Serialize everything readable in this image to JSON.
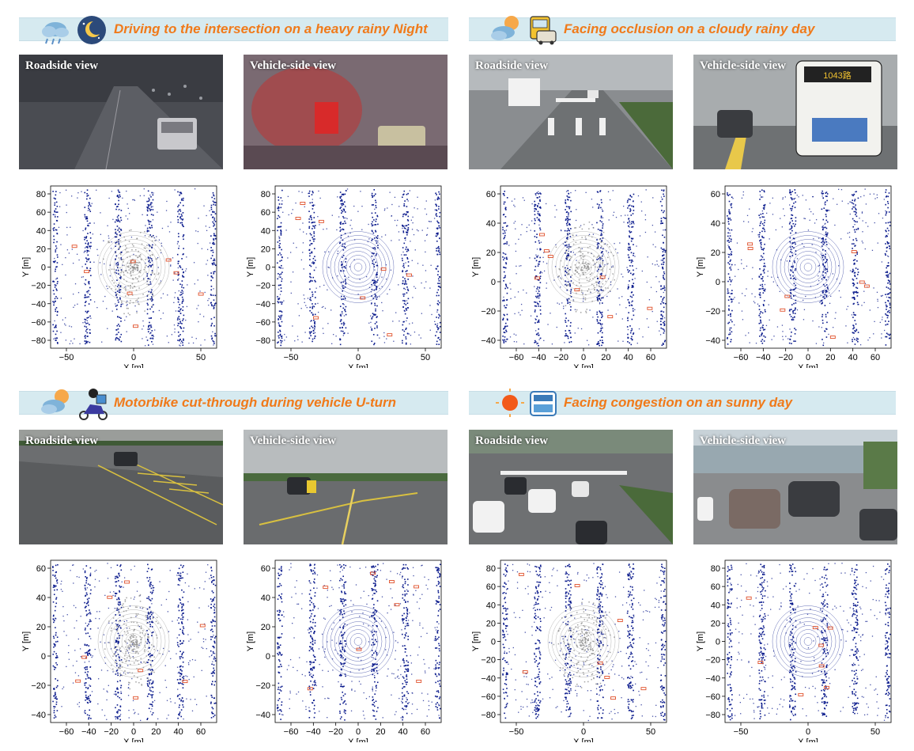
{
  "scenarios": [
    {
      "title": "Driving to the intersection on a heavy rainy Night",
      "icons": [
        "rain-cloud-icon",
        "night-moon-icon"
      ],
      "roadside_caption": "Roadside view",
      "vehicle_caption": "Vehicle-side view",
      "roadside_plot": {
        "x_ticks": [
          "−50",
          "0",
          "50"
        ],
        "y_ticks": [
          "80",
          "60",
          "40",
          "20",
          "0",
          "−20",
          "−40",
          "−60",
          "−80"
        ],
        "xlabel": "X [m]",
        "ylabel": "Y [m]"
      },
      "vehicle_plot": {
        "x_ticks": [
          "−50",
          "0",
          "50"
        ],
        "y_ticks": [
          "80",
          "60",
          "40",
          "20",
          "0",
          "−20",
          "−40",
          "−60",
          "−80"
        ],
        "xlabel": "X [m]",
        "ylabel": "Y [m]"
      }
    },
    {
      "title": "Facing occlusion on a cloudy rainy day",
      "icons": [
        "cloudy-sun-icon",
        "bus-car-icon"
      ],
      "roadside_caption": "Roadside view",
      "vehicle_caption": "Vehicle-side view",
      "bus_sign": "1043路",
      "roadside_plot": {
        "x_ticks": [
          "−60",
          "−40",
          "−20",
          "0",
          "20",
          "40",
          "60"
        ],
        "y_ticks": [
          "60",
          "40",
          "20",
          "0",
          "−20",
          "−40"
        ],
        "xlabel": "X [m]",
        "ylabel": "Y [m]"
      },
      "vehicle_plot": {
        "x_ticks": [
          "−60",
          "−40",
          "−20",
          "0",
          "20",
          "40",
          "60"
        ],
        "y_ticks": [
          "60",
          "40",
          "20",
          "0",
          "−20",
          "−40"
        ],
        "xlabel": "X [m]",
        "ylabel": "Y [m]"
      }
    },
    {
      "title": "Motorbike cut-through during vehicle U-turn",
      "icons": [
        "cloudy-sun-icon",
        "motorbike-rider-icon"
      ],
      "roadside_caption": "Roadside view",
      "vehicle_caption": "Vehicle-side view",
      "roadside_plot": {
        "x_ticks": [
          "−60",
          "−40",
          "−20",
          "0",
          "20",
          "40",
          "60"
        ],
        "y_ticks": [
          "60",
          "40",
          "20",
          "0",
          "−20",
          "−40"
        ],
        "xlabel": "X [m]",
        "ylabel": "Y [m]"
      },
      "vehicle_plot": {
        "x_ticks": [
          "−60",
          "−40",
          "−20",
          "0",
          "20",
          "40",
          "60"
        ],
        "y_ticks": [
          "60",
          "40",
          "20",
          "0",
          "−20",
          "−40"
        ],
        "xlabel": "X [m]",
        "ylabel": "Y [m]"
      }
    },
    {
      "title": "Facing congestion on an sunny day",
      "icons": [
        "sun-icon",
        "traffic-jam-icon"
      ],
      "roadside_caption": "Roadside view",
      "vehicle_caption": "Vehicle-side view",
      "roadside_plot": {
        "x_ticks": [
          "−50",
          "0",
          "50"
        ],
        "y_ticks": [
          "80",
          "60",
          "40",
          "20",
          "0",
          "−20",
          "−40",
          "−60",
          "−80"
        ],
        "xlabel": "X [m]",
        "ylabel": "Y [m]"
      },
      "vehicle_plot": {
        "x_ticks": [
          "−50",
          "0",
          "50"
        ],
        "y_ticks": [
          "80",
          "60",
          "40",
          "20",
          "0",
          "−20",
          "−40",
          "−60",
          "−80"
        ],
        "xlabel": "X [m]",
        "ylabel": "Y [m]"
      }
    }
  ],
  "colors": {
    "banner_bg": "#d6eaf0",
    "title": "#f07a1a",
    "points_blue": "#0a1a8c",
    "points_gray": "#8c8c8c",
    "box_red": "#e0502a"
  }
}
